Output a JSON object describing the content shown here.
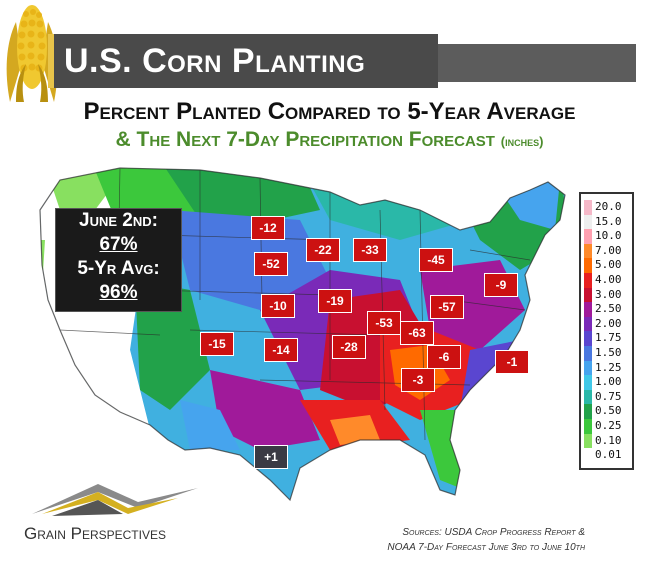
{
  "header": {
    "title": "U.S. Corn Planting",
    "subtitle_line1": "Percent Planted Compared to 5-Year Average",
    "subtitle_line2": "& The Next 7-Day Precipitation Forecast",
    "subtitle_units": "(inches)"
  },
  "stats": {
    "date_label": "June 2nd:",
    "date_value": "67%",
    "avg_label": "5-Yr Avg:",
    "avg_value": "96%"
  },
  "badges": [
    {
      "label": "-12"
    },
    {
      "label": "-52"
    },
    {
      "label": "-22"
    },
    {
      "label": "-33"
    },
    {
      "label": "-45"
    },
    {
      "label": "-9"
    },
    {
      "label": "-10"
    },
    {
      "label": "-19"
    },
    {
      "label": "-57"
    },
    {
      "label": "-53"
    },
    {
      "label": "-63"
    },
    {
      "label": "-15"
    },
    {
      "label": "-14"
    },
    {
      "label": "-28"
    },
    {
      "label": "-6"
    },
    {
      "label": "-1"
    },
    {
      "label": "-3"
    },
    {
      "label": "+1"
    }
  ],
  "legend": {
    "items": [
      {
        "label": "20.0",
        "color": "#f5b8c8"
      },
      {
        "label": "15.0",
        "color": "#eeeeee"
      },
      {
        "label": "10.0",
        "color": "#ffa0b0"
      },
      {
        "label": "7.00",
        "color": "#ff8a2a"
      },
      {
        "label": "5.00",
        "color": "#ff6a00"
      },
      {
        "label": "4.00",
        "color": "#e82020"
      },
      {
        "label": "3.00",
        "color": "#c81030"
      },
      {
        "label": "2.50",
        "color": "#a01a9a"
      },
      {
        "label": "2.00",
        "color": "#7a2ab8"
      },
      {
        "label": "1.75",
        "color": "#5a46d0"
      },
      {
        "label": "1.50",
        "color": "#4a78e0"
      },
      {
        "label": "1.25",
        "color": "#46a4ee"
      },
      {
        "label": "1.00",
        "color": "#40c8e8"
      },
      {
        "label": "0.75",
        "color": "#2ab8a8"
      },
      {
        "label": "0.50",
        "color": "#22a24a"
      },
      {
        "label": "0.25",
        "color": "#3cc83c"
      },
      {
        "label": "0.10",
        "color": "#88e060"
      },
      {
        "label": "0.01",
        "color": "#ffffff"
      }
    ]
  },
  "footer": {
    "brand": "Grain Perspectives",
    "source_line1": "Sources: USDA Crop Progress Report &",
    "source_line2": "NOAA 7-Day Forecast  June 3rd to June 10th"
  }
}
